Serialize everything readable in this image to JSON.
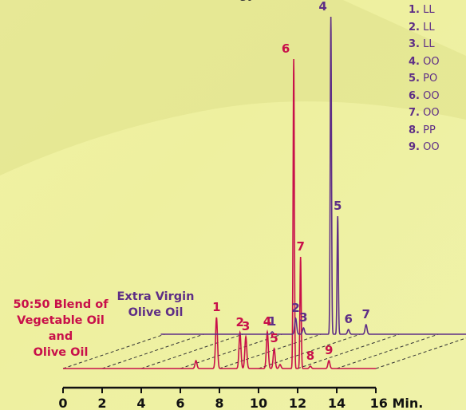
{
  "header_fragment": "gy",
  "legend": [
    {
      "num": "1.",
      "text": "LL"
    },
    {
      "num": "2.",
      "text": "LL"
    },
    {
      "num": "3.",
      "text": "LL"
    },
    {
      "num": "4.",
      "text": "OO"
    },
    {
      "num": "5.",
      "text": "PO"
    },
    {
      "num": "6.",
      "text": "OO"
    },
    {
      "num": "7.",
      "text": "OO"
    },
    {
      "num": "8.",
      "text": "PP"
    },
    {
      "num": "9.",
      "text": "OO"
    }
  ],
  "labels": {
    "blend": [
      "50:50 Blend of",
      "Vegetable Oil and",
      "Olive Oil"
    ],
    "olive": [
      "Extra Virgin",
      "Olive Oil"
    ]
  },
  "colors": {
    "blend": "#c8104a",
    "olive": "#5e2e86",
    "axis": "#111111"
  },
  "chart_data": {
    "type": "line",
    "xlabel": "Min.",
    "xlim": [
      0,
      16
    ],
    "x_ticks": [
      "0",
      "2",
      "4",
      "6",
      "8",
      "10",
      "12",
      "14",
      "16 Min."
    ],
    "series": [
      {
        "name": "50:50 Blend of Vegetable Oil and Olive Oil",
        "peaks": [
          {
            "label": "1",
            "t": 7.85,
            "h": 64
          },
          {
            "label": "2",
            "t": 9.05,
            "h": 45
          },
          {
            "label": "3",
            "t": 9.35,
            "h": 40
          },
          {
            "label": "4",
            "t": 10.45,
            "h": 46
          },
          {
            "label": "5",
            "t": 10.8,
            "h": 25
          },
          {
            "label": "6",
            "t": 11.8,
            "h": 388
          },
          {
            "label": "7",
            "t": 12.15,
            "h": 140
          },
          {
            "label": "8",
            "t": 12.65,
            "h": 3
          },
          {
            "label": "9",
            "t": 13.6,
            "h": 10
          }
        ],
        "minor_peaks": [
          {
            "t": 6.8,
            "h": 10
          },
          {
            "t": 11.1,
            "h": 5
          }
        ]
      },
      {
        "name": "Extra Virgin Olive Oil",
        "peaks": [
          {
            "label": "1",
            "t": 14.4,
            "h": 3
          },
          {
            "label": "2",
            "t": 15.6,
            "h": 20
          },
          {
            "label": "3",
            "t": 16.0,
            "h": 8
          },
          {
            "label": "4",
            "t": 17.4,
            "h": 398
          },
          {
            "label": "5",
            "t": 17.75,
            "h": 148
          },
          {
            "label": "6",
            "t": 18.3,
            "h": 6
          },
          {
            "label": "7",
            "t": 19.2,
            "h": 12
          }
        ]
      }
    ]
  }
}
